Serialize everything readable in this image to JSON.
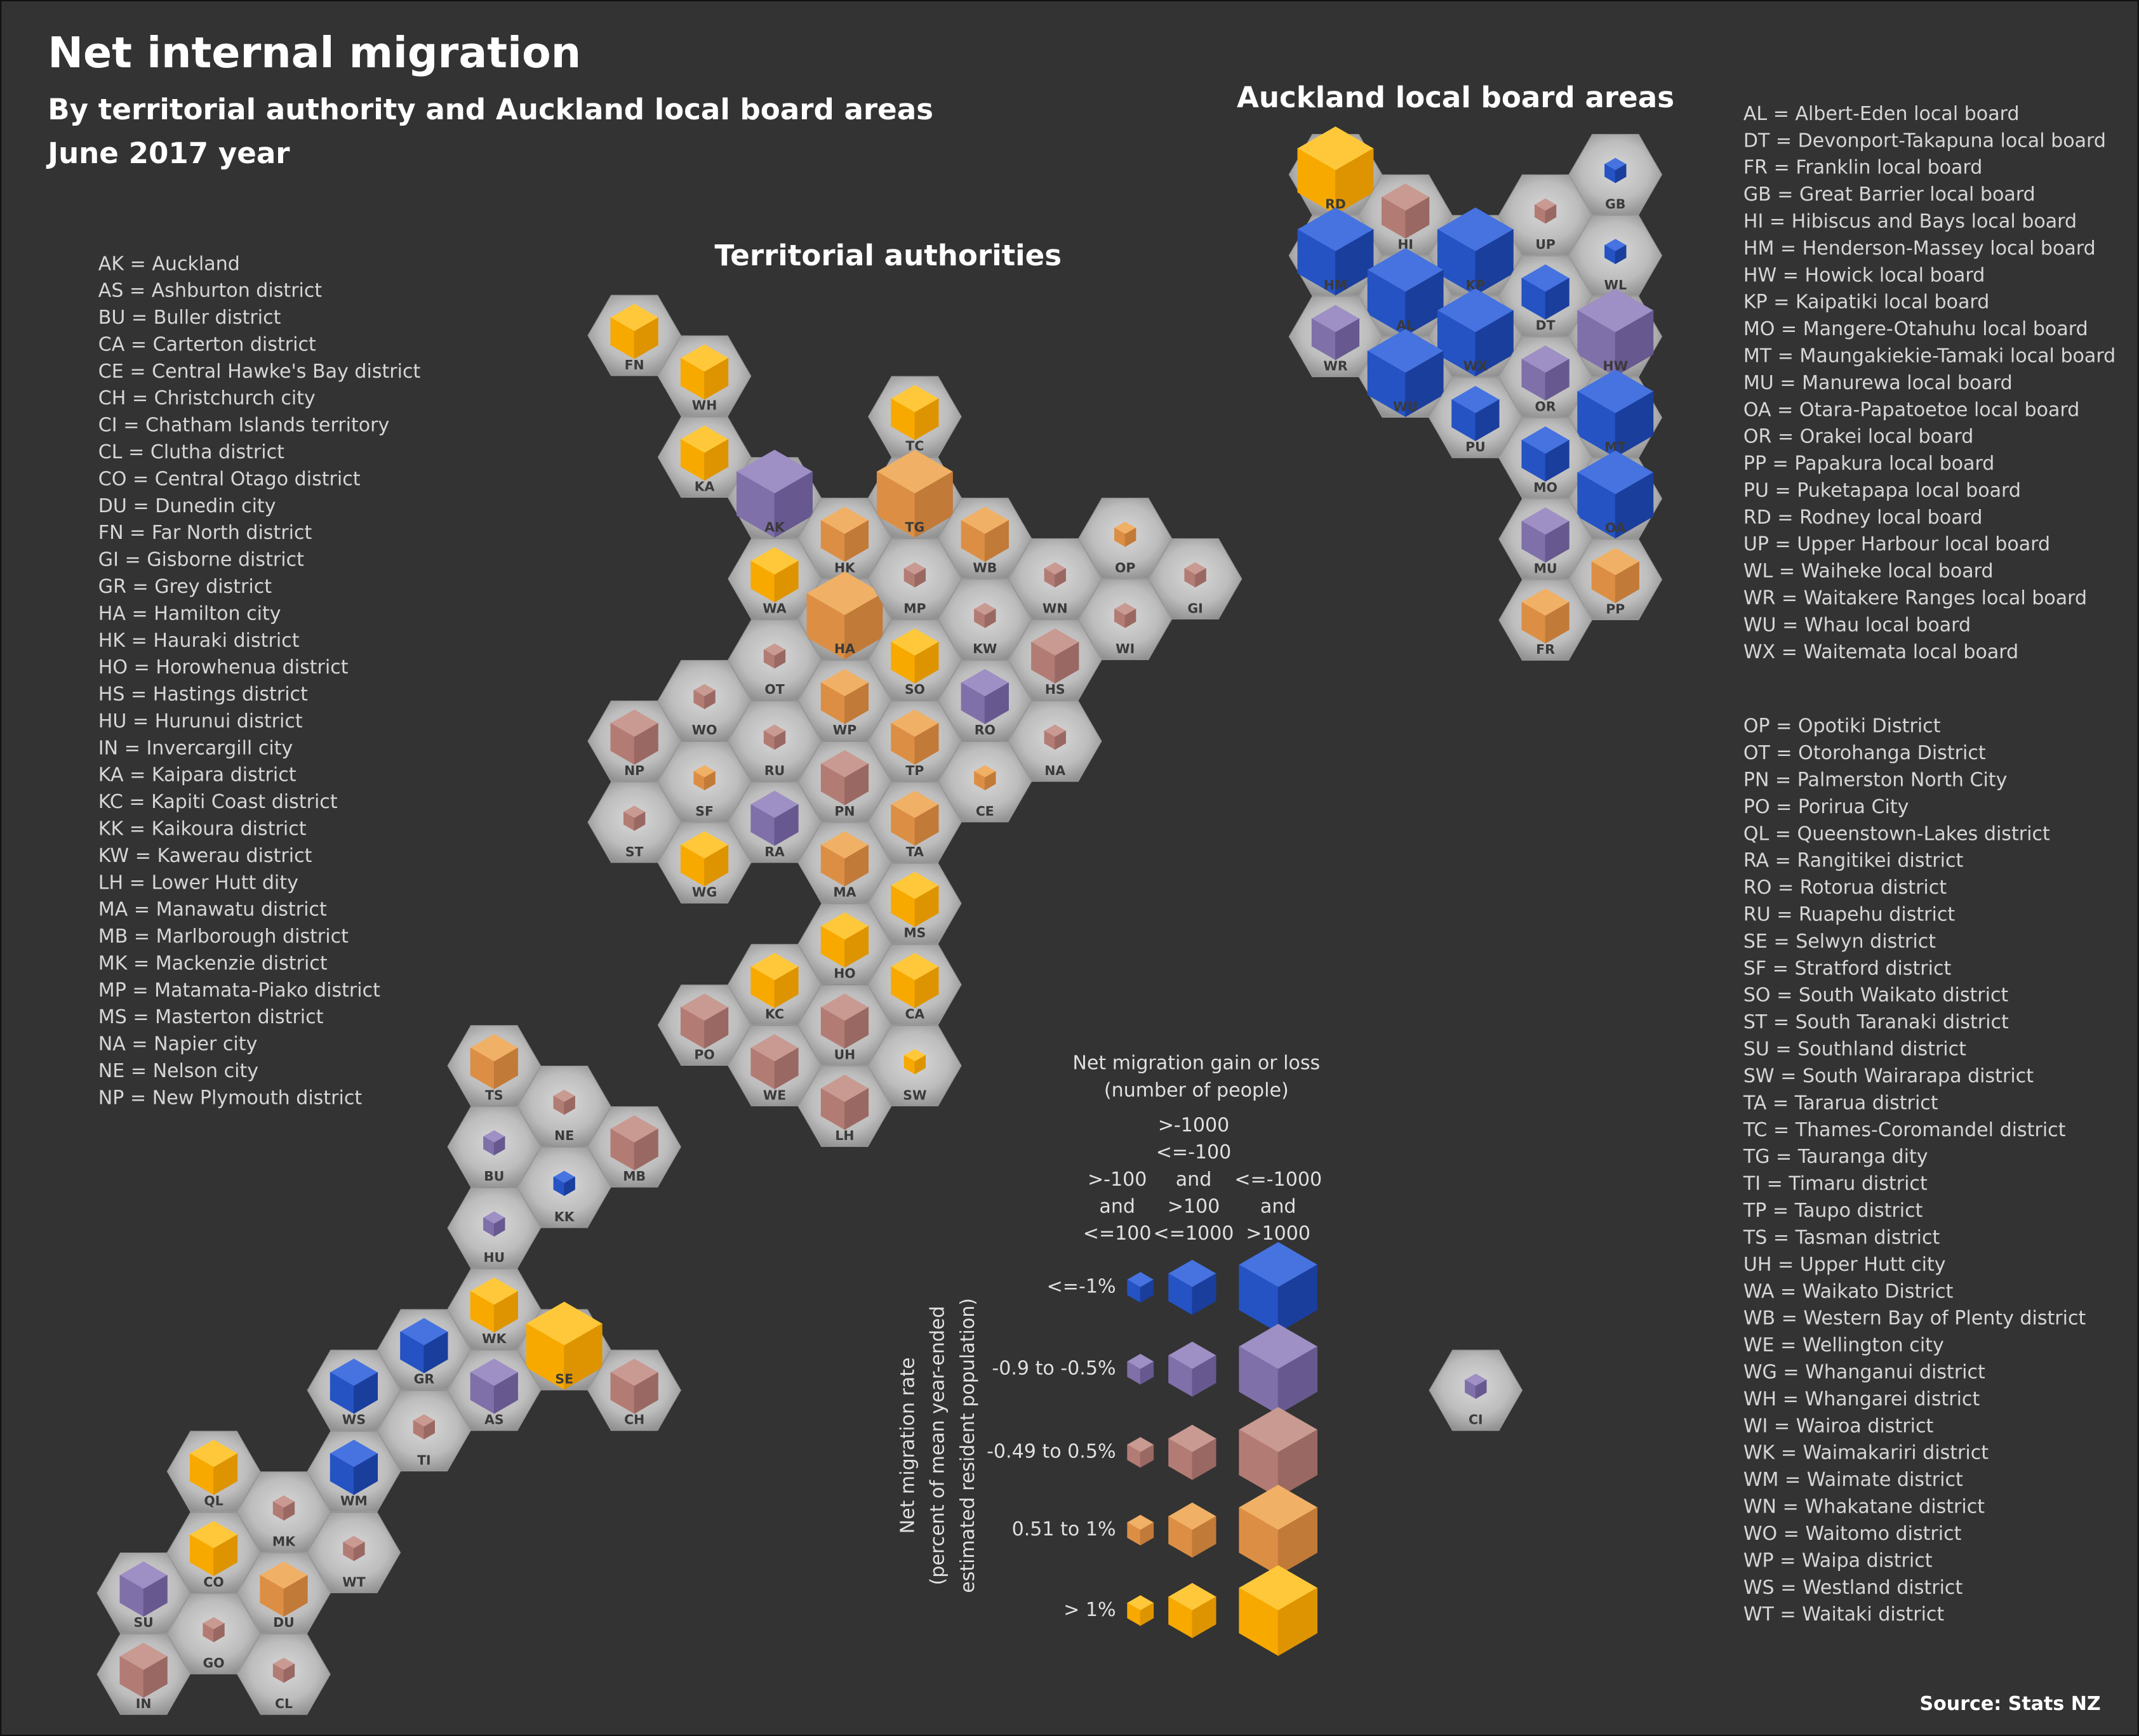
{
  "title": "Net internal migration",
  "subtitle": [
    "By territorial authority and Auckland local board areas",
    "June 2017 year"
  ],
  "territorial_authorities": {
    "title": "Territorial authorities",
    "hexes": [
      {
        "code": "FN",
        "rate": 4,
        "size": 1
      },
      {
        "code": "WH",
        "rate": 4,
        "size": 1
      },
      {
        "code": "KA",
        "rate": 4,
        "size": 1
      },
      {
        "code": "AK",
        "rate": 1,
        "size": 2
      },
      {
        "code": "TC",
        "rate": 4,
        "size": 1
      },
      {
        "code": "TG",
        "rate": 3,
        "size": 2
      },
      {
        "code": "HK",
        "rate": 3,
        "size": 1
      },
      {
        "code": "WA",
        "rate": 4,
        "size": 1
      },
      {
        "code": "HA",
        "rate": 3,
        "size": 2
      },
      {
        "code": "MP",
        "rate": 2,
        "size": 0
      },
      {
        "code": "WB",
        "rate": 3,
        "size": 1
      },
      {
        "code": "WN",
        "rate": 2,
        "size": 0
      },
      {
        "code": "OP",
        "rate": 3,
        "size": 0
      },
      {
        "code": "GI",
        "rate": 2,
        "size": 0
      },
      {
        "code": "KW",
        "rate": 2,
        "size": 0
      },
      {
        "code": "WI",
        "rate": 2,
        "size": 0
      },
      {
        "code": "OT",
        "rate": 2,
        "size": 0
      },
      {
        "code": "SO",
        "rate": 4,
        "size": 1
      },
      {
        "code": "RO",
        "rate": 1,
        "size": 1
      },
      {
        "code": "HS",
        "rate": 2,
        "size": 1
      },
      {
        "code": "WO",
        "rate": 2,
        "size": 0
      },
      {
        "code": "NP",
        "rate": 2,
        "size": 1
      },
      {
        "code": "WP",
        "rate": 3,
        "size": 1
      },
      {
        "code": "NA",
        "rate": 2,
        "size": 0
      },
      {
        "code": "RU",
        "rate": 2,
        "size": 0
      },
      {
        "code": "TP",
        "rate": 3,
        "size": 1
      },
      {
        "code": "CE",
        "rate": 3,
        "size": 0
      },
      {
        "code": "SF",
        "rate": 3,
        "size": 0
      },
      {
        "code": "PN",
        "rate": 2,
        "size": 1
      },
      {
        "code": "ST",
        "rate": 2,
        "size": 0
      },
      {
        "code": "RA",
        "rate": 1,
        "size": 1
      },
      {
        "code": "TA",
        "rate": 3,
        "size": 1
      },
      {
        "code": "WG",
        "rate": 4,
        "size": 1
      },
      {
        "code": "MA",
        "rate": 3,
        "size": 1
      },
      {
        "code": "MS",
        "rate": 4,
        "size": 1
      },
      {
        "code": "HO",
        "rate": 4,
        "size": 1
      },
      {
        "code": "KC",
        "rate": 4,
        "size": 1
      },
      {
        "code": "CA",
        "rate": 4,
        "size": 1
      },
      {
        "code": "PO",
        "rate": 2,
        "size": 1
      },
      {
        "code": "UH",
        "rate": 2,
        "size": 1
      },
      {
        "code": "WE",
        "rate": 2,
        "size": 1
      },
      {
        "code": "SW",
        "rate": 4,
        "size": 0
      },
      {
        "code": "LH",
        "rate": 2,
        "size": 1
      },
      {
        "code": "TS",
        "rate": 3,
        "size": 1
      },
      {
        "code": "NE",
        "rate": 2,
        "size": 0
      },
      {
        "code": "MB",
        "rate": 2,
        "size": 1
      },
      {
        "code": "BU",
        "rate": 1,
        "size": 0
      },
      {
        "code": "KK",
        "rate": 0,
        "size": 0
      },
      {
        "code": "HU",
        "rate": 1,
        "size": 0
      },
      {
        "code": "WK",
        "rate": 4,
        "size": 1
      },
      {
        "code": "SE",
        "rate": 4,
        "size": 2
      },
      {
        "code": "GR",
        "rate": 0,
        "size": 1
      },
      {
        "code": "CH",
        "rate": 2,
        "size": 1
      },
      {
        "code": "WS",
        "rate": 0,
        "size": 1
      },
      {
        "code": "AS",
        "rate": 1,
        "size": 1
      },
      {
        "code": "TI",
        "rate": 2,
        "size": 0
      },
      {
        "code": "QL",
        "rate": 4,
        "size": 1
      },
      {
        "code": "WM",
        "rate": 0,
        "size": 1
      },
      {
        "code": "MK",
        "rate": 2,
        "size": 0
      },
      {
        "code": "CO",
        "rate": 4,
        "size": 1
      },
      {
        "code": "WT",
        "rate": 2,
        "size": 0
      },
      {
        "code": "SU",
        "rate": 1,
        "size": 1
      },
      {
        "code": "DU",
        "rate": 3,
        "size": 1
      },
      {
        "code": "GO",
        "rate": 2,
        "size": 0
      },
      {
        "code": "IN",
        "rate": 2,
        "size": 1
      },
      {
        "code": "CL",
        "rate": 2,
        "size": 0
      },
      {
        "code": "CI",
        "rate": 1,
        "size": 0
      }
    ]
  },
  "auckland": {
    "title": "Auckland local board areas",
    "hexes": [
      {
        "code": "RD",
        "rate": 4,
        "size": 2
      },
      {
        "code": "GB",
        "rate": 0,
        "size": 0
      },
      {
        "code": "HI",
        "rate": 2,
        "size": 1
      },
      {
        "code": "UP",
        "rate": 2,
        "size": 0
      },
      {
        "code": "HM",
        "rate": 0,
        "size": 2
      },
      {
        "code": "KP",
        "rate": 0,
        "size": 2
      },
      {
        "code": "WL",
        "rate": 0,
        "size": 0
      },
      {
        "code": "AL",
        "rate": 0,
        "size": 2
      },
      {
        "code": "DT",
        "rate": 0,
        "size": 1
      },
      {
        "code": "WR",
        "rate": 1,
        "size": 1
      },
      {
        "code": "WX",
        "rate": 0,
        "size": 2
      },
      {
        "code": "HW",
        "rate": 1,
        "size": 2
      },
      {
        "code": "WU",
        "rate": 0,
        "size": 2
      },
      {
        "code": "OR",
        "rate": 1,
        "size": 1
      },
      {
        "code": "PU",
        "rate": 0,
        "size": 1
      },
      {
        "code": "MT",
        "rate": 0,
        "size": 2
      },
      {
        "code": "MO",
        "rate": 0,
        "size": 1
      },
      {
        "code": "OA",
        "rate": 0,
        "size": 2
      },
      {
        "code": "MU",
        "rate": 1,
        "size": 1
      },
      {
        "code": "PP",
        "rate": 3,
        "size": 1
      },
      {
        "code": "FR",
        "rate": 3,
        "size": 1
      }
    ]
  },
  "key_lists": [
    [
      "AK = Auckland",
      "AS = Ashburton district",
      "BU = Buller district",
      "CA = Carterton district",
      "CE = Central Hawke's Bay district",
      "CH = Christchurch city",
      "CI = Chatham Islands territory",
      "CL = Clutha district",
      "CO = Central Otago district",
      "DU = Dunedin city",
      "FN = Far North district",
      "GI = Gisborne district",
      "GR = Grey district",
      "HA = Hamilton city",
      "HK = Hauraki district",
      "HO = Horowhenua district",
      "HS = Hastings district",
      "HU = Hurunui district",
      "IN = Invercargill city",
      "KA = Kaipara district",
      "KC = Kapiti Coast district",
      "KK = Kaikoura district",
      "KW = Kawerau district",
      "LH = Lower Hutt dity",
      "MA = Manawatu district",
      "MB = Marlborough district",
      "MK = Mackenzie district",
      "MP = Matamata-Piako district",
      "MS = Masterton district",
      "NA = Napier city",
      "NE = Nelson city",
      "NP = New Plymouth district"
    ],
    [
      "AL = Albert-Eden local board",
      "DT = Devonport-Takapuna local board",
      "FR = Franklin local board",
      "GB = Great Barrier local board",
      "HI = Hibiscus and Bays local board",
      "HM = Henderson-Massey local board",
      "HW = Howick local board",
      "KP = Kaipatiki local board",
      "MO = Mangere-Otahuhu local board",
      "MT = Maungakiekie-Tamaki local board",
      "MU = Manurewa local board",
      "OA = Otara-Papatoetoe local board",
      "OR = Orakei local board",
      "PP = Papakura local board",
      "PU = Puketapapa local board",
      "RD = Rodney local board",
      "UP = Upper Harbour local board",
      "WL = Waiheke local board",
      "WR = Waitakere Ranges local board",
      "WU = Whau local board",
      "WX = Waitemata local board"
    ],
    [
      "OP = Opotiki District",
      "OT = Otorohanga District",
      "PN = Palmerston North City",
      "PO = Porirua City",
      "QL = Queenstown-Lakes district",
      "RA = Rangitikei district",
      "RO = Rotorua district",
      "RU = Ruapehu district",
      "SE = Selwyn district",
      "SF = Stratford district",
      "SO = South Waikato district",
      "ST = South Taranaki district",
      "SU = Southland district",
      "SW = South Wairarapa district",
      "TA = Tararua district",
      "TC = Thames-Coromandel district",
      "TG = Tauranga dity",
      "TI = Timaru district",
      "TP = Taupo district",
      "TS = Tasman district",
      "UH = Upper Hutt city",
      "WA = Waikato District",
      "WB = Western Bay of Plenty district",
      "WE = Wellington city",
      "WG = Whanganui district",
      "WH = Whangarei district",
      "WI = Wairoa district",
      "WK = Waimakariri district",
      "WM = Waimate district",
      "WN = Whakatane district",
      "WO = Waitomo district",
      "WP = Waipa district",
      "WS = Westland district",
      "WT = Waitaki district"
    ]
  ],
  "legend": {
    "size_title": [
      "Net migration gain or loss",
      "(number of people)"
    ],
    "sizes": [
      [
        ">-100",
        "and",
        "<=100"
      ],
      [
        ">-1000",
        "<=-100",
        "and",
        ">100",
        "<=1000"
      ],
      [
        "<=-1000",
        "and",
        ">1000"
      ]
    ],
    "rate_title": [
      "Net migration rate",
      "(percent of mean year-ended",
      "estimated resident population)"
    ],
    "rates": [
      {
        "label": "<=-1%",
        "colors": [
          "#4673e0",
          "#2553c4",
          "#1a3e9c"
        ]
      },
      {
        "label": "-0.9 to -0.5%",
        "colors": [
          "#9e8fc4",
          "#8070a9",
          "#675890"
        ]
      },
      {
        "label": "-0.49 to 0.5%",
        "colors": [
          "#c99a92",
          "#b27c74",
          "#9a6862"
        ]
      },
      {
        "label": "0.51 to 1%",
        "colors": [
          "#f0b066",
          "#dc8f44",
          "#c27a38"
        ]
      },
      {
        "label": "> 1%",
        "colors": [
          "#ffc83a",
          "#f7a900",
          "#de9400"
        ]
      }
    ]
  },
  "source": "Source: Stats NZ"
}
